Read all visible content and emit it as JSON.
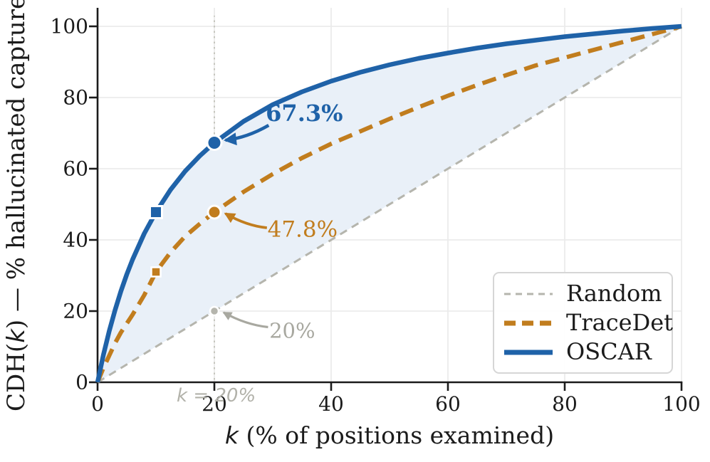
{
  "chart_data": {
    "type": "line",
    "title": "",
    "xlabel": "k (% of positions examined)",
    "ylabel": "CDH(k) — % hallucinated capture",
    "xlabel_parts": {
      "k": "k",
      "rest": " (% of positions examined)"
    },
    "ylabel_parts": {
      "pre": "CDH(",
      "k": "k",
      "post": ") — % hallucinated capture"
    },
    "xlim": [
      0,
      100
    ],
    "ylim": [
      0,
      105
    ],
    "grid": true,
    "grid_color": "#ebebeb",
    "xticks": [
      "0",
      "20",
      "40",
      "60",
      "80",
      "100"
    ],
    "yticks": [
      "0",
      "20",
      "40",
      "60",
      "80",
      "100"
    ],
    "xtick_values": [
      0,
      20,
      40,
      60,
      80,
      100
    ],
    "ytick_values": [
      0,
      20,
      40,
      60,
      80,
      100
    ],
    "x": [
      0,
      1,
      2,
      3,
      4,
      5,
      6,
      8,
      10,
      12.5,
      15,
      17.5,
      20,
      25,
      30,
      35,
      40,
      45,
      50,
      55,
      60,
      65,
      70,
      75,
      80,
      85,
      90,
      95,
      100
    ],
    "series": [
      {
        "name": "Random",
        "color": "#b5b5ad",
        "style": "dashed-thin",
        "width": 3,
        "dash": "11 8",
        "values": [
          0,
          1,
          2,
          3,
          4,
          5,
          6,
          8,
          10,
          12.5,
          15,
          17.5,
          20,
          25,
          30,
          35,
          40,
          45,
          50,
          55,
          60,
          65,
          70,
          75,
          80,
          85,
          90,
          95,
          100
        ]
      },
      {
        "name": "TraceDet",
        "color": "#c17d1e",
        "style": "dashed",
        "width": 6,
        "dash": "20 11",
        "values": [
          0,
          4,
          7.5,
          11,
          14,
          16.5,
          19,
          24.5,
          31,
          36.5,
          41,
          44.5,
          47.8,
          53.5,
          58.5,
          63,
          67,
          70.5,
          74,
          77.3,
          80.5,
          83.5,
          86.3,
          89,
          91.2,
          93.4,
          95.6,
          97.8,
          100
        ]
      },
      {
        "name": "OSCAR",
        "color": "#1f62a8",
        "style": "solid",
        "width": 6.5,
        "dash": null,
        "values": [
          0,
          7.7,
          14.4,
          20.3,
          25.6,
          30.3,
          34.5,
          41.8,
          47.8,
          54.1,
          59.3,
          63.6,
          67.3,
          73.3,
          78,
          81.6,
          84.6,
          87.1,
          89.2,
          91,
          92.5,
          93.9,
          95.1,
          96.1,
          97.1,
          97.9,
          98.7,
          99.4,
          100
        ]
      }
    ],
    "fill_between": {
      "upper": "OSCAR",
      "lower": "Random",
      "color": "#e9f0f8"
    },
    "markers": [
      {
        "series": "OSCAR",
        "shape": "circle",
        "x": 20,
        "y": 67.3,
        "size": 10
      },
      {
        "series": "TraceDet",
        "shape": "circle",
        "x": 20,
        "y": 47.8,
        "size": 9
      },
      {
        "series": "Random",
        "shape": "circle",
        "x": 20,
        "y": 20,
        "size": 6
      },
      {
        "series": "OSCAR",
        "shape": "square",
        "x": 10,
        "y": 47.8,
        "size": 8.5
      },
      {
        "series": "TraceDet",
        "shape": "square",
        "x": 10,
        "y": 31,
        "size": 6.5
      }
    ],
    "annotations": [
      {
        "id": "oscar",
        "text": "67.3%",
        "color": "#1f62a8",
        "bold": true,
        "anchor": [
          28.8,
          75.6
        ],
        "arrow_from": [
          29.3,
          72.2
        ],
        "arrow_to": [
          21.9,
          68.0
        ],
        "arrow_width": 4.5
      },
      {
        "id": "tracedet",
        "text": "47.8%",
        "color": "#c17d1e",
        "bold": false,
        "anchor": [
          29.1,
          42.9
        ],
        "arrow_from": [
          29.0,
          43.4
        ],
        "arrow_to": [
          21.9,
          47.4
        ],
        "arrow_width": 3.8
      },
      {
        "id": "random",
        "text": "20%",
        "color": "#a8a8a0",
        "bold": false,
        "anchor": [
          29.4,
          14.4
        ],
        "arrow_from": [
          29.2,
          15.5
        ],
        "arrow_to": [
          21.6,
          19.6
        ],
        "arrow_width": 3.2
      }
    ],
    "vline": {
      "x": 20,
      "label": "k = 20%",
      "color": "#c6c6be",
      "label_color": "#b2b2aa"
    },
    "legend": {
      "position": "lower right",
      "entries": [
        "Random",
        "TraceDet",
        "OSCAR"
      ]
    }
  }
}
